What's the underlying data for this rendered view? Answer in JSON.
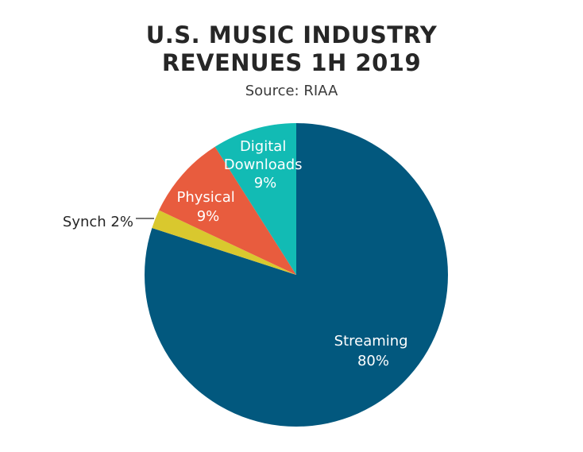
{
  "chart_data": {
    "type": "pie",
    "title_lines": [
      "U.S. MUSIC INDUSTRY",
      "REVENUES 1H 2019"
    ],
    "subtitle": "Source: RIAA",
    "slices": [
      {
        "name": "Streaming",
        "value": 80,
        "label_lines": [
          "Streaming",
          "80%"
        ],
        "color": "#02587e"
      },
      {
        "name": "Synch",
        "value": 2,
        "label_lines": [
          "Synch 2%"
        ],
        "color": "#d9c82e"
      },
      {
        "name": "Physical",
        "value": 9,
        "label_lines": [
          "Physical",
          "9%"
        ],
        "color": "#e85c3e"
      },
      {
        "name": "Digital Downloads",
        "value": 9,
        "label_lines": [
          "Digital",
          "Downloads",
          "9%"
        ],
        "color": "#12bbb4"
      }
    ]
  }
}
